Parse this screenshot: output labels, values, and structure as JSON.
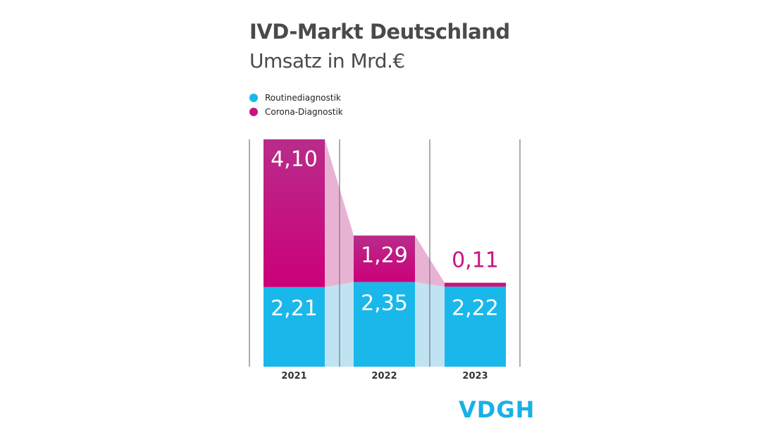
{
  "chart_data": {
    "type": "bar",
    "stacked": true,
    "title": "IVD-Markt Deutschland",
    "subtitle": "Umsatz in Mrd.€",
    "categories": [
      "2021",
      "2022",
      "2023"
    ],
    "series": [
      {
        "name": "Routinediagnostik",
        "values": [
          2.21,
          2.35,
          2.22
        ],
        "labels": [
          "2,21",
          "2,35",
          "2,22"
        ],
        "color": "#1ab8ea"
      },
      {
        "name": "Corona-Diagnostik",
        "values": [
          4.1,
          1.29,
          0.11
        ],
        "labels": [
          "4,10",
          "1,29",
          "0,11"
        ],
        "color": "#c8137e"
      }
    ],
    "legend": "top-left",
    "grid": false,
    "connector_colors": {
      "Routinediagnostik": "#bfe3f2",
      "Corona-Diagnostik": "#e8b3d2"
    }
  },
  "logo": "VDGH"
}
